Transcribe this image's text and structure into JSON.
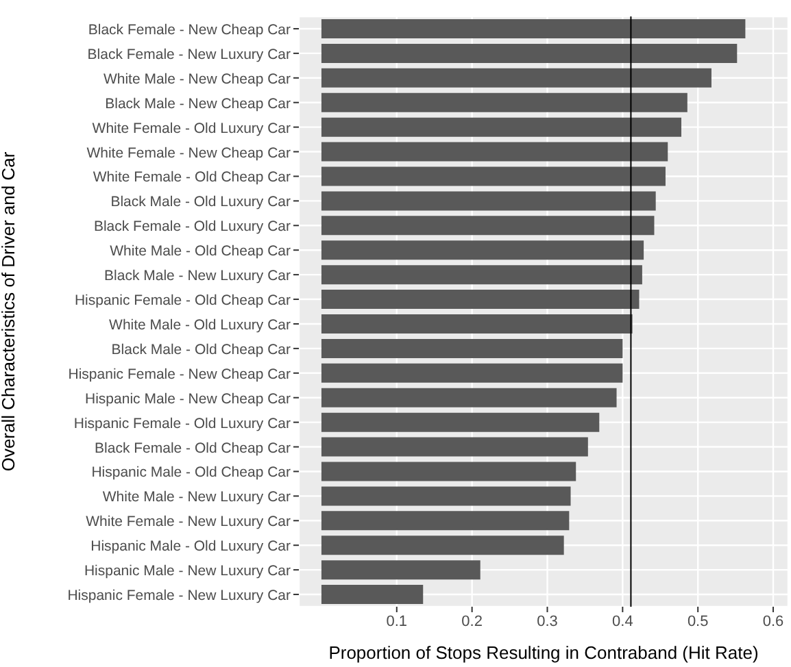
{
  "chart_data": {
    "type": "bar",
    "orientation": "horizontal",
    "xlabel": "Proportion of Stops Resulting in Contraband (Hit Rate)",
    "ylabel": "Overall Characteristics of Driver and Car",
    "categories": [
      "Black Female - New Cheap Car",
      "Black Female - New Luxury Car",
      "White Male - New Cheap Car",
      "Black Male - New Cheap Car",
      "White Female - Old Luxury Car",
      "White Female - New Cheap Car",
      "White Female - Old Cheap Car",
      "Black Male - Old Luxury Car",
      "Black Female - Old Luxury Car",
      "White Male - Old Cheap Car",
      "Black Male - New Luxury Car",
      "Hispanic Female - Old Cheap Car",
      "White Male - Old Luxury Car",
      "Black Male - Old Cheap Car",
      "Hispanic Female - New Cheap Car",
      "Hispanic Male - New Cheap Car",
      "Hispanic Female - Old Luxury Car",
      "Black Female - Old Cheap Car",
      "Hispanic Male - Old Cheap Car",
      "White Male - New Luxury Car",
      "White Female - New Luxury Car",
      "Hispanic Male - Old Luxury Car",
      "Hispanic Male - New Luxury Car",
      "Hispanic Female - New Luxury Car"
    ],
    "values": [
      0.563,
      0.552,
      0.518,
      0.486,
      0.478,
      0.46,
      0.457,
      0.444,
      0.442,
      0.428,
      0.426,
      0.422,
      0.413,
      0.4,
      0.4,
      0.392,
      0.369,
      0.354,
      0.338,
      0.331,
      0.329,
      0.322,
      0.211,
      0.135
    ],
    "color": "#595959",
    "xlim": [
      -0.03,
      0.62
    ],
    "xticks": [
      0.1,
      0.2,
      0.3,
      0.4,
      0.5,
      0.6
    ],
    "grid": true,
    "ref_lines": [
      {
        "axis": "x",
        "value": 0.411,
        "color": "#000000"
      }
    ]
  }
}
